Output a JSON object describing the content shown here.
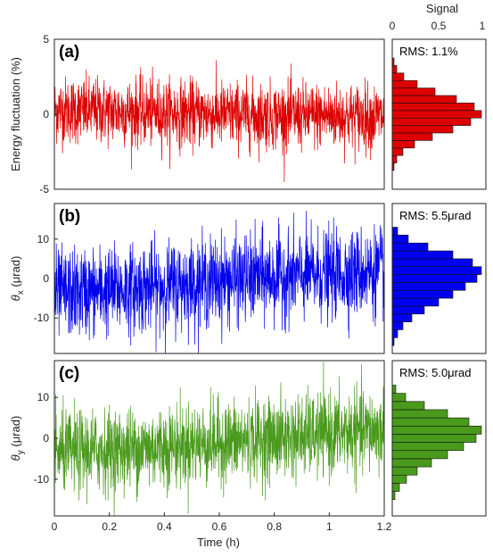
{
  "chart_data": [
    {
      "type": "line",
      "panel_label": "(a)",
      "ylabel": "Energy fluctuation (%)",
      "ylim": [
        -5,
        5
      ],
      "yticks": [
        -5,
        0,
        5
      ],
      "xlim": [
        0,
        1.2
      ],
      "color": "#dd0000",
      "series": [
        {
          "x": [
            0,
            0.2,
            0.4,
            0.6,
            0.8,
            1.0,
            1.2
          ],
          "mean": [
            0.3,
            0.2,
            0.1,
            0.0,
            -0.1,
            -0.1,
            -0.2
          ],
          "rms": 1.1
        }
      ],
      "histogram": {
        "rms_label": "RMS: 1.1%",
        "bin_centers": [
          -3.5,
          -3.0,
          -2.5,
          -2.0,
          -1.5,
          -1.0,
          -0.5,
          0.0,
          0.5,
          1.0,
          1.5,
          2.0,
          2.5,
          3.0,
          3.5
        ],
        "values": [
          0.02,
          0.05,
          0.12,
          0.25,
          0.45,
          0.68,
          0.88,
          1.0,
          0.92,
          0.72,
          0.48,
          0.28,
          0.13,
          0.05,
          0.02
        ]
      }
    },
    {
      "type": "line",
      "panel_label": "(b)",
      "ylabel": "θ_x (μrad)",
      "ylim": [
        -19,
        19
      ],
      "yticks": [
        -10,
        0,
        10
      ],
      "xlim": [
        0,
        1.2
      ],
      "color": "#0000ee",
      "series": [
        {
          "x": [
            0,
            0.2,
            0.4,
            0.6,
            0.8,
            1.0,
            1.2
          ],
          "mean": [
            -4.0,
            -3.0,
            -2.0,
            -0.5,
            0.5,
            1.0,
            2.0
          ],
          "rms": 5.5
        }
      ],
      "histogram": {
        "rms_label": "RMS: 5.5μrad",
        "bin_centers": [
          -16,
          -14,
          -12,
          -10,
          -8,
          -6,
          -4,
          -2,
          0,
          2,
          4,
          6,
          8,
          10,
          12
        ],
        "values": [
          0.02,
          0.06,
          0.12,
          0.22,
          0.36,
          0.52,
          0.68,
          0.82,
          0.95,
          1.0,
          0.9,
          0.68,
          0.4,
          0.18,
          0.06
        ]
      }
    },
    {
      "type": "line",
      "panel_label": "(c)",
      "ylabel": "θ_y (μrad)",
      "ylim": [
        -19,
        19
      ],
      "yticks": [
        -10,
        0,
        10
      ],
      "xlim": [
        0,
        1.2
      ],
      "xticks": [
        0,
        0.2,
        0.4,
        0.6,
        0.8,
        1,
        1.2
      ],
      "xlabel": "Time (h)",
      "color": "#4a9a1c",
      "series": [
        {
          "x": [
            0,
            0.2,
            0.4,
            0.6,
            0.8,
            1.0,
            1.2
          ],
          "mean": [
            -3.5,
            -3.0,
            -2.0,
            -1.0,
            0.0,
            1.0,
            2.0
          ],
          "rms": 5.0
        }
      ],
      "histogram": {
        "rms_label": "RMS: 5.0μrad",
        "bin_centers": [
          -14,
          -12,
          -10,
          -8,
          -6,
          -4,
          -2,
          0,
          2,
          4,
          6,
          8,
          10,
          12
        ],
        "values": [
          0.03,
          0.08,
          0.16,
          0.28,
          0.44,
          0.62,
          0.8,
          0.94,
          1.0,
          0.86,
          0.62,
          0.36,
          0.15,
          0.04
        ]
      }
    }
  ],
  "histogram_axis": {
    "title": "Signal",
    "ticks": [
      "0",
      "0.5",
      "1"
    ],
    "xlim": [
      0,
      1.05
    ]
  }
}
